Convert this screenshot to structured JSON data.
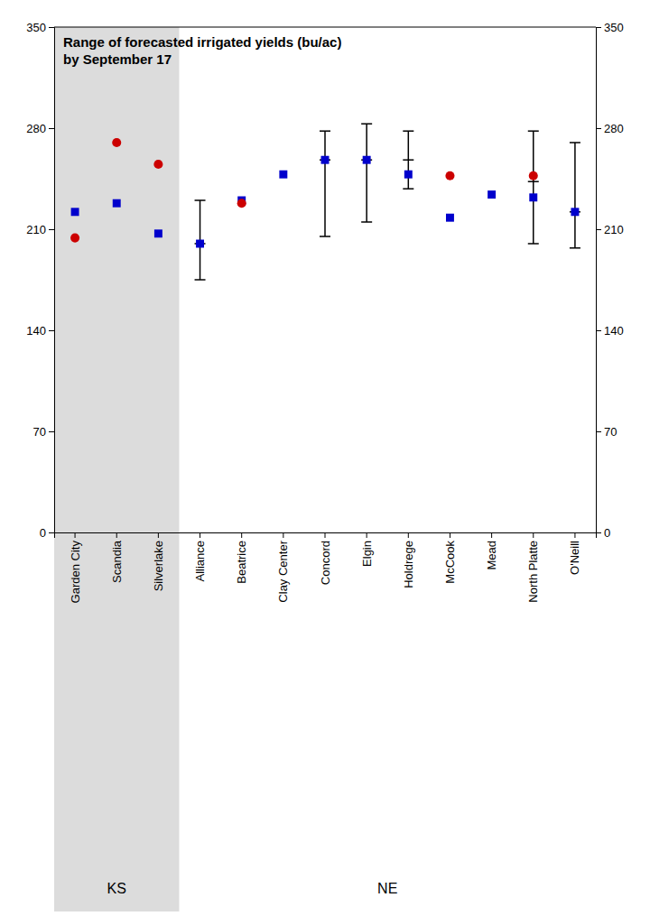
{
  "chart_data": {
    "type": "scatter",
    "title": "Range of forecasted irrigated yields (bu/ac)",
    "subtitle": "by September 17",
    "categories": [
      "Garden City",
      "Scandia",
      "Silverlake",
      "Alliance",
      "Beatrice",
      "Clay Center",
      "Concord",
      "Elgin",
      "Holdrege",
      "McCook",
      "Mead",
      "North Platte",
      "O'Neill"
    ],
    "series": [
      {
        "color": "#0000CC",
        "marker": "square",
        "values": [
          222,
          228,
          207,
          200,
          230,
          248,
          258,
          258,
          248,
          218,
          234,
          232,
          222
        ]
      },
      {
        "color": "#CC0000",
        "marker": "circle",
        "values": [
          204,
          270,
          255,
          null,
          228,
          null,
          null,
          null,
          null,
          247,
          null,
          247,
          null
        ]
      }
    ],
    "error_low": [
      null,
      null,
      null,
      175,
      null,
      null,
      205,
      215,
      238,
      null,
      null,
      200,
      197
    ],
    "error_high": [
      null,
      null,
      null,
      230,
      null,
      null,
      278,
      283,
      278,
      null,
      null,
      278,
      270
    ],
    "error_mid": [
      null,
      null,
      null,
      200,
      null,
      null,
      258,
      258,
      258,
      null,
      null,
      243,
      222
    ],
    "groups": [
      {
        "label": "KS",
        "color": "#dcdcdc",
        "categories": [
          "Garden City",
          "Scandia",
          "Silverlake"
        ]
      },
      {
        "label": "NE",
        "categories": [
          "Alliance",
          "Beatrice",
          "Clay Center",
          "Concord",
          "Elgin",
          "Holdrege",
          "McCook",
          "Mead",
          "North Platte",
          "O'Neill"
        ]
      }
    ],
    "ylim": [
      0,
      350
    ],
    "yticks": [
      0,
      70,
      140,
      210,
      280,
      350
    ],
    "y2lim": [
      0,
      350
    ],
    "y2ticks": [
      0,
      70,
      140,
      210,
      280,
      350
    ]
  }
}
